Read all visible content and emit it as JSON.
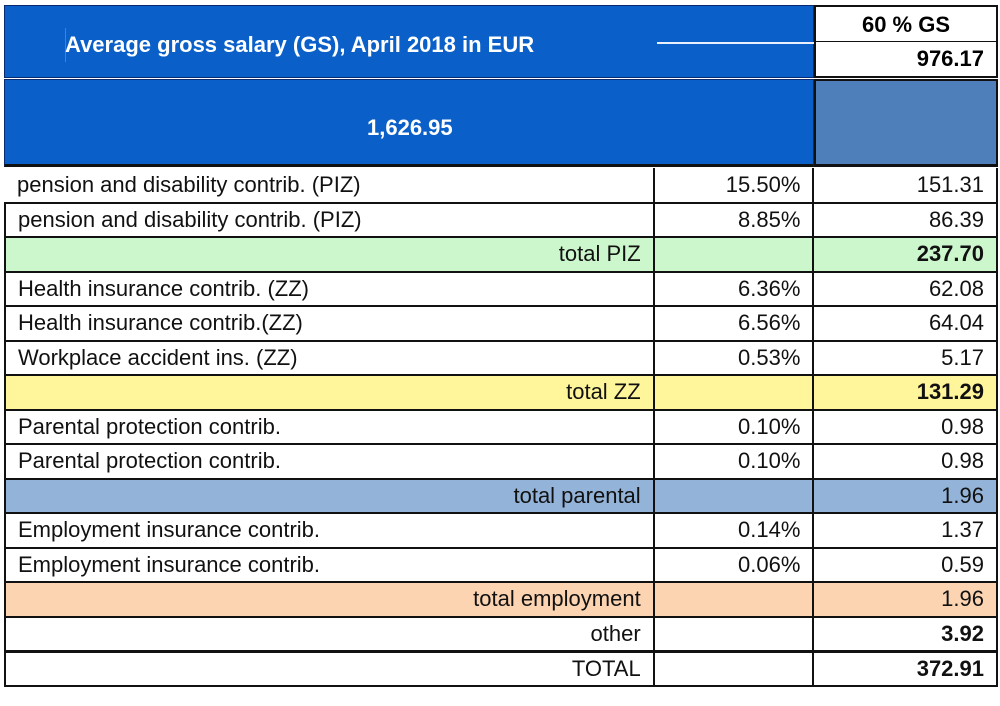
{
  "header": {
    "title": "Average gross salary (GS), April 2018 in EUR",
    "gross_salary": "1,626.95",
    "gs_share_label": "60 % GS",
    "gs_share_value": "976.17"
  },
  "colors": {
    "header_blue": "#0a60c8",
    "header_side_blue": "#4f7fba",
    "total_piz": "#ccf7cc",
    "total_zz": "#fff59a",
    "total_parental": "#94b3d8",
    "total_employment": "#fcd4b2"
  },
  "rows": [
    {
      "label": "pension and disability contrib. (PIZ)",
      "rate": "15.50%",
      "amount": "151.31"
    },
    {
      "label": "pension and disability contrib. (PIZ)",
      "rate": "8.85%",
      "amount": "86.39"
    },
    {
      "label": "total PIZ",
      "rate": "",
      "amount": "237.70"
    },
    {
      "label": "Health insurance contrib. (ZZ)",
      "rate": "6.36%",
      "amount": "62.08"
    },
    {
      "label": "Health insurance contrib.(ZZ)",
      "rate": "6.56%",
      "amount": "64.04"
    },
    {
      "label": "Workplace accident ins. (ZZ)",
      "rate": "0.53%",
      "amount": "5.17"
    },
    {
      "label": "total ZZ",
      "rate": "",
      "amount": "131.29"
    },
    {
      "label": "Parental protection contrib.",
      "rate": "0.10%",
      "amount": "0.98"
    },
    {
      "label": "Parental protection contrib.",
      "rate": "0.10%",
      "amount": "0.98"
    },
    {
      "label": "total parental",
      "rate": "",
      "amount": "1.96"
    },
    {
      "label": "Employment insurance contrib.",
      "rate": "0.14%",
      "amount": "1.37"
    },
    {
      "label": "Employment insurance contrib.",
      "rate": "0.06%",
      "amount": "0.59"
    },
    {
      "label": "total employment",
      "rate": "",
      "amount": "1.96"
    },
    {
      "label": "other",
      "rate": "",
      "amount": "3.92"
    },
    {
      "label": "TOTAL",
      "rate": "",
      "amount": "372.91"
    }
  ]
}
